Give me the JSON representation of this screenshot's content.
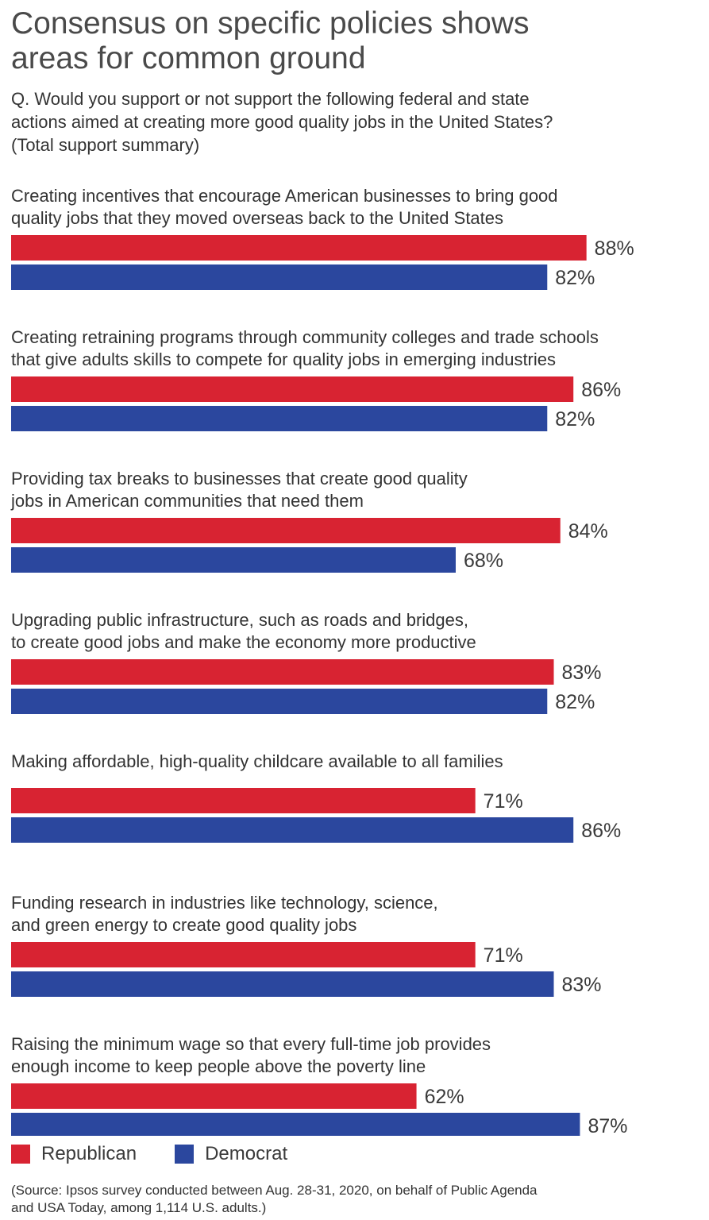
{
  "title": "Consensus on specific policies shows\nareas for common ground",
  "question": "Q. Would you support or not support the following federal and state\nactions aimed at creating more good quality jobs in the United States?\n(Total support summary)",
  "source": "(Source: Ipsos survey conducted between Aug. 28-31, 2020, on behalf of Public Agenda\nand USA Today, among 1,114 U.S. adults.)",
  "legend": {
    "republican": "Republican",
    "democrat": "Democrat"
  },
  "colors": {
    "republican": "#d82332",
    "democrat": "#2b479e"
  },
  "chart_data": {
    "type": "bar",
    "orientation": "horizontal",
    "title": "Consensus on specific policies shows areas for common ground",
    "xlabel": "",
    "ylabel": "",
    "value_suffix": "%",
    "xlim": [
      0,
      100
    ],
    "grid": false,
    "legend_position": "bottom-left",
    "categories": [
      [
        "Creating incentives that encourage American businesses to bring good",
        "quality jobs that they moved overseas back to the United States"
      ],
      [
        "Creating retraining programs through community colleges and trade schools",
        "that give adults skills to compete for quality jobs in emerging industries"
      ],
      [
        "Providing tax breaks to businesses that create good quality",
        "jobs in American communities that need them"
      ],
      [
        "Upgrading public infrastructure, such as roads and bridges,",
        "to create good jobs and make the economy more productive"
      ],
      [
        "Making affordable, high-quality childcare available to all families"
      ],
      [
        "Funding research in industries like technology, science,",
        "and green energy to create good quality jobs"
      ],
      [
        "Raising the minimum wage so that every full-time job provides",
        "enough income to keep people above the poverty line"
      ]
    ],
    "series": [
      {
        "name": "Republican",
        "values": [
          88,
          86,
          84,
          83,
          71,
          71,
          62
        ]
      },
      {
        "name": "Democrat",
        "values": [
          82,
          82,
          68,
          82,
          86,
          83,
          87
        ]
      }
    ]
  }
}
